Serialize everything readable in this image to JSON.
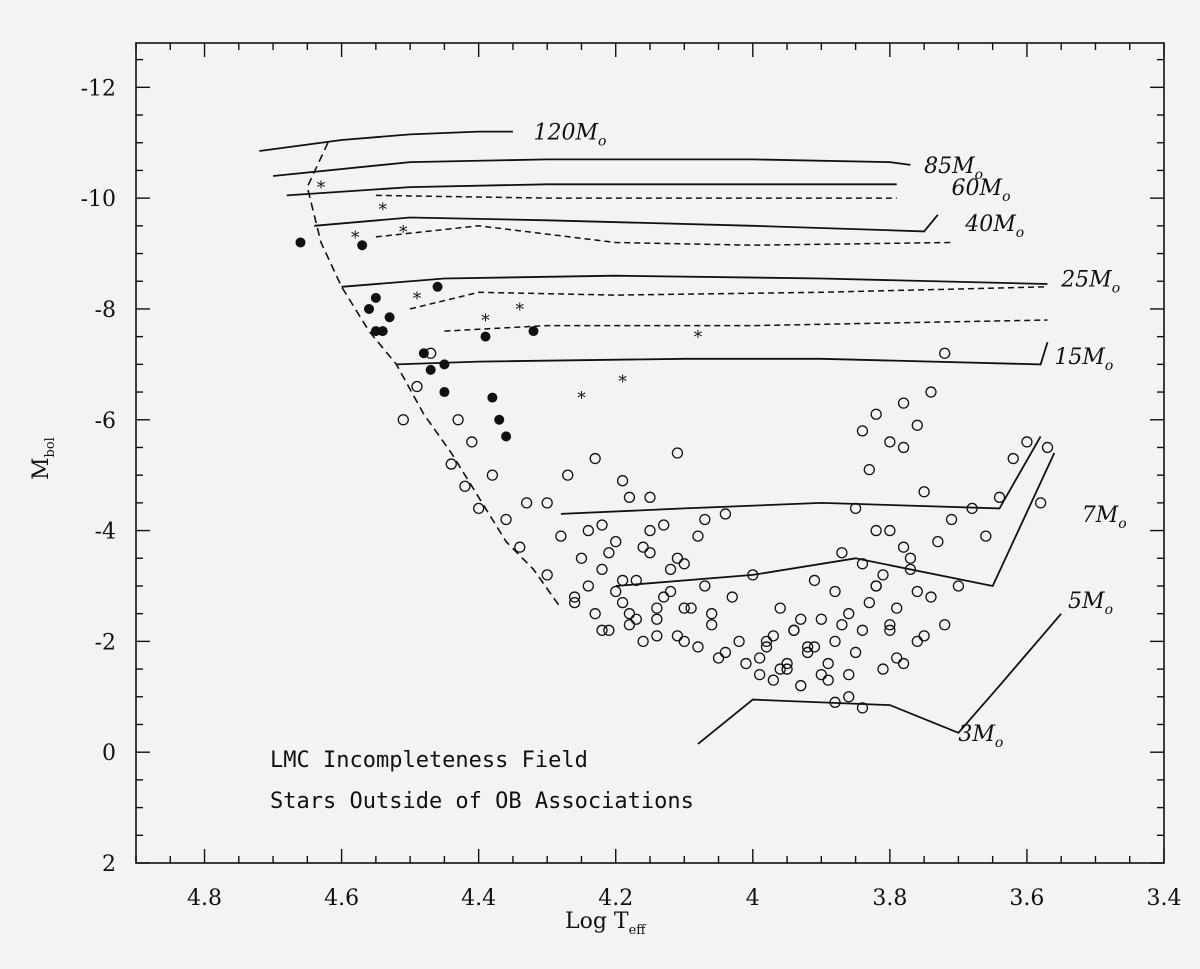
{
  "chart_data": {
    "type": "scatter",
    "title": "",
    "xlabel": "Log T",
    "xlabel_sub": "eff",
    "ylabel": "M",
    "ylabel_sub": "bol",
    "xlim": [
      4.9,
      3.4
    ],
    "ylim": [
      2,
      -12.8
    ],
    "x_ticks": [
      "4.8",
      "4.6",
      "4.4",
      "4.2",
      "4",
      "3.8",
      "3.6",
      "3.4"
    ],
    "y_ticks": [
      "-12",
      "-10",
      "-8",
      "-6",
      "-4",
      "-2",
      "0",
      "2"
    ],
    "annotations": [
      "LMC Incompleteness Field",
      "Stars Outside of OB Associations"
    ],
    "grid": false,
    "colors": {
      "ink": "#111111",
      "paper": "#f3f3f1"
    },
    "zams": [
      [
        4.62,
        -11.0
      ],
      [
        4.65,
        -10.2
      ],
      [
        4.63,
        -9.2
      ],
      [
        4.6,
        -8.4
      ],
      [
        4.56,
        -7.6
      ],
      [
        4.52,
        -7.0
      ],
      [
        4.48,
        -6.1
      ],
      [
        4.44,
        -5.4
      ],
      [
        4.4,
        -4.6
      ],
      [
        4.36,
        -3.8
      ],
      [
        4.32,
        -3.3
      ],
      [
        4.28,
        -2.6
      ]
    ],
    "tracks": [
      {
        "label": "120M",
        "mass": 120,
        "label_at": [
          4.32,
          -11.2
        ],
        "solid": [
          [
            4.72,
            -10.85
          ],
          [
            4.6,
            -11.05
          ],
          [
            4.5,
            -11.15
          ],
          [
            4.4,
            -11.2
          ],
          [
            4.35,
            -11.2
          ]
        ],
        "dashed": []
      },
      {
        "label": "85M",
        "mass": 85,
        "label_at": [
          3.75,
          -10.6
        ],
        "solid": [
          [
            4.7,
            -10.4
          ],
          [
            4.5,
            -10.65
          ],
          [
            4.3,
            -10.7
          ],
          [
            4.0,
            -10.7
          ],
          [
            3.8,
            -10.65
          ],
          [
            3.77,
            -10.6
          ]
        ],
        "dashed": []
      },
      {
        "label": "60M",
        "mass": 60,
        "label_at": [
          3.71,
          -10.2
        ],
        "solid": [
          [
            4.68,
            -10.05
          ],
          [
            4.5,
            -10.2
          ],
          [
            4.3,
            -10.25
          ],
          [
            4.0,
            -10.25
          ],
          [
            3.79,
            -10.25
          ]
        ],
        "dashed": [
          [
            4.55,
            -10.05
          ],
          [
            4.3,
            -10.0
          ],
          [
            4.0,
            -10.0
          ],
          [
            3.79,
            -10.0
          ]
        ]
      },
      {
        "label": "40M",
        "mass": 40,
        "label_at": [
          3.69,
          -9.55
        ],
        "solid": [
          [
            4.64,
            -9.5
          ],
          [
            4.5,
            -9.65
          ],
          [
            4.3,
            -9.6
          ],
          [
            4.0,
            -9.5
          ],
          [
            3.75,
            -9.4
          ],
          [
            3.73,
            -9.7
          ]
        ],
        "dashed": [
          [
            4.55,
            -9.3
          ],
          [
            4.4,
            -9.5
          ],
          [
            4.2,
            -9.2
          ],
          [
            4.0,
            -9.15
          ],
          [
            3.71,
            -9.2
          ]
        ]
      },
      {
        "label": "25M",
        "mass": 25,
        "label_at": [
          3.55,
          -8.55
        ],
        "solid": [
          [
            4.6,
            -8.4
          ],
          [
            4.45,
            -8.55
          ],
          [
            4.2,
            -8.6
          ],
          [
            3.9,
            -8.55
          ],
          [
            3.57,
            -8.45
          ]
        ],
        "dashed": [
          [
            4.5,
            -8.0
          ],
          [
            4.4,
            -8.3
          ],
          [
            4.2,
            -8.25
          ],
          [
            3.9,
            -8.3
          ],
          [
            3.57,
            -8.4
          ]
        ]
      },
      {
        "label": "15M",
        "mass": 15,
        "label_at": [
          3.56,
          -7.15
        ],
        "solid": [
          [
            4.52,
            -7.0
          ],
          [
            4.4,
            -7.05
          ],
          [
            4.1,
            -7.1
          ],
          [
            3.9,
            -7.1
          ],
          [
            3.58,
            -7.0
          ],
          [
            3.57,
            -7.4
          ]
        ],
        "dashed": [
          [
            4.45,
            -7.6
          ],
          [
            4.3,
            -7.7
          ],
          [
            4.0,
            -7.7
          ],
          [
            3.57,
            -7.8
          ]
        ]
      },
      {
        "label": "7M",
        "mass": 7,
        "label_at": [
          3.52,
          -4.3
        ],
        "solid": [
          [
            4.28,
            -4.3
          ],
          [
            4.1,
            -4.4
          ],
          [
            3.9,
            -4.5
          ],
          [
            3.64,
            -4.4
          ],
          [
            3.58,
            -5.7
          ]
        ],
        "dashed": []
      },
      {
        "label": "5M",
        "mass": 5,
        "label_at": [
          3.54,
          -2.75
        ],
        "solid": [
          [
            4.2,
            -3.0
          ],
          [
            4.0,
            -3.2
          ],
          [
            3.85,
            -3.5
          ],
          [
            3.65,
            -3.0
          ],
          [
            3.56,
            -5.4
          ]
        ],
        "dashed": []
      },
      {
        "label": "3M",
        "mass": 3,
        "label_at": [
          3.7,
          -0.35
        ],
        "solid": [
          [
            4.08,
            -0.15
          ],
          [
            4.0,
            -0.95
          ],
          [
            3.8,
            -0.85
          ],
          [
            3.7,
            -0.35
          ],
          [
            3.64,
            -1.2
          ],
          [
            3.55,
            -2.5
          ]
        ],
        "dashed": []
      }
    ],
    "series": [
      {
        "marker": "filled-circle",
        "x": [
          4.66,
          4.57,
          4.56,
          4.55,
          4.55,
          4.54,
          4.53,
          4.48,
          4.47,
          4.46,
          4.45,
          4.45,
          4.39,
          4.38,
          4.37,
          4.36,
          4.32
        ],
        "y": [
          -9.2,
          -9.15,
          -8.0,
          -8.2,
          -7.6,
          -7.6,
          -7.85,
          -7.2,
          -6.9,
          -8.4,
          -6.5,
          -7.0,
          -7.5,
          -6.4,
          -6.0,
          -5.7,
          -7.6
        ]
      },
      {
        "marker": "star",
        "x": [
          4.63,
          4.58,
          4.54,
          4.51,
          4.49,
          4.39,
          4.34,
          4.25,
          4.19,
          4.08
        ],
        "y": [
          -10.2,
          -9.3,
          -9.8,
          -9.4,
          -8.2,
          -7.8,
          -8.0,
          -6.4,
          -6.7,
          -7.5
        ]
      },
      {
        "marker": "open-circle",
        "x": [
          4.51,
          4.49,
          4.47,
          4.44,
          4.43,
          4.42,
          4.41,
          4.4,
          4.38,
          4.36,
          4.34,
          4.33,
          4.3,
          4.28,
          4.26,
          4.25,
          4.24,
          4.23,
          4.22,
          4.21,
          4.2,
          4.19,
          4.18,
          4.17,
          4.16,
          4.15,
          4.14,
          4.13,
          4.12,
          4.11,
          4.1,
          4.09,
          4.08,
          4.07,
          4.06,
          4.05,
          4.04,
          4.03,
          4.02,
          4.01,
          4.0,
          3.99,
          3.98,
          3.97,
          3.96,
          3.95,
          3.94,
          3.93,
          3.92,
          3.91,
          3.9,
          3.89,
          3.88,
          3.87,
          3.86,
          3.85,
          3.84,
          3.83,
          3.82,
          3.81,
          3.8,
          3.79,
          3.78,
          3.77,
          3.76,
          3.75,
          3.74,
          3.73,
          3.72,
          3.71,
          3.7,
          3.68,
          3.66,
          3.64,
          3.62,
          3.6,
          3.58,
          3.57,
          4.22,
          4.2,
          4.18,
          4.16,
          4.14,
          4.12,
          4.1,
          4.08,
          4.06,
          4.04,
          3.99,
          3.97,
          3.95,
          3.93,
          3.91,
          3.89,
          3.87,
          3.85,
          3.83,
          3.81,
          3.79,
          3.77,
          3.75,
          4.24,
          4.21,
          4.19,
          4.17,
          4.15,
          4.13,
          4.11,
          3.98,
          3.96,
          3.94,
          3.92,
          3.9,
          3.88,
          3.86,
          3.84,
          3.82,
          3.8,
          3.78,
          3.76,
          4.3,
          4.27,
          4.23,
          4.19,
          4.15,
          4.11,
          4.07,
          3.84,
          3.82,
          3.8,
          3.78,
          3.76,
          3.74,
          3.72,
          4.26,
          4.22,
          4.18,
          4.14,
          4.1,
          3.88,
          3.86,
          3.84,
          3.82,
          3.8,
          3.78
        ],
        "y": [
          -6.0,
          -6.6,
          -7.2,
          -5.2,
          -6.0,
          -4.8,
          -5.6,
          -4.4,
          -5.0,
          -4.2,
          -3.7,
          -4.5,
          -3.2,
          -3.9,
          -2.8,
          -3.5,
          -4.0,
          -2.5,
          -3.3,
          -2.2,
          -3.8,
          -2.7,
          -4.6,
          -3.1,
          -2.0,
          -3.6,
          -2.4,
          -4.1,
          -2.9,
          -2.1,
          -3.4,
          -2.6,
          -1.9,
          -3.0,
          -2.3,
          -1.7,
          -4.3,
          -2.8,
          -2.0,
          -1.6,
          -3.2,
          -1.4,
          -1.9,
          -1.3,
          -2.6,
          -1.5,
          -2.2,
          -1.2,
          -1.8,
          -3.1,
          -2.4,
          -1.6,
          -2.9,
          -3.6,
          -1.4,
          -4.4,
          -2.2,
          -5.1,
          -3.0,
          -1.5,
          -4.0,
          -2.6,
          -5.5,
          -3.3,
          -2.0,
          -4.7,
          -2.8,
          -3.8,
          -2.3,
          -4.2,
          -3.0,
          -4.4,
          -3.9,
          -4.6,
          -5.3,
          -5.6,
          -4.5,
          -5.5,
          -4.1,
          -2.9,
          -2.3,
          -3.7,
          -2.6,
          -3.3,
          -2.0,
          -3.9,
          -2.5,
          -1.8,
          -1.7,
          -2.1,
          -1.6,
          -2.4,
          -1.9,
          -1.3,
          -2.3,
          -1.8,
          -2.7,
          -3.2,
          -1.7,
          -3.5,
          -2.1,
          -3.0,
          -3.6,
          -3.1,
          -2.4,
          -4.0,
          -2.8,
          -3.5,
          -2.0,
          -1.5,
          -2.2,
          -1.9,
          -1.4,
          -2.0,
          -2.5,
          -3.4,
          -4.0,
          -2.3,
          -3.7,
          -2.9,
          -4.5,
          -5.0,
          -5.3,
          -4.9,
          -4.6,
          -5.4,
          -4.2,
          -5.8,
          -6.1,
          -5.6,
          -6.3,
          -5.9,
          -6.5,
          -7.2,
          -2.7,
          -2.2,
          -2.5,
          -2.1,
          -2.6,
          -0.9,
          -1.0,
          -0.8,
          -3.0,
          -2.2,
          -1.6
        ]
      }
    ]
  }
}
